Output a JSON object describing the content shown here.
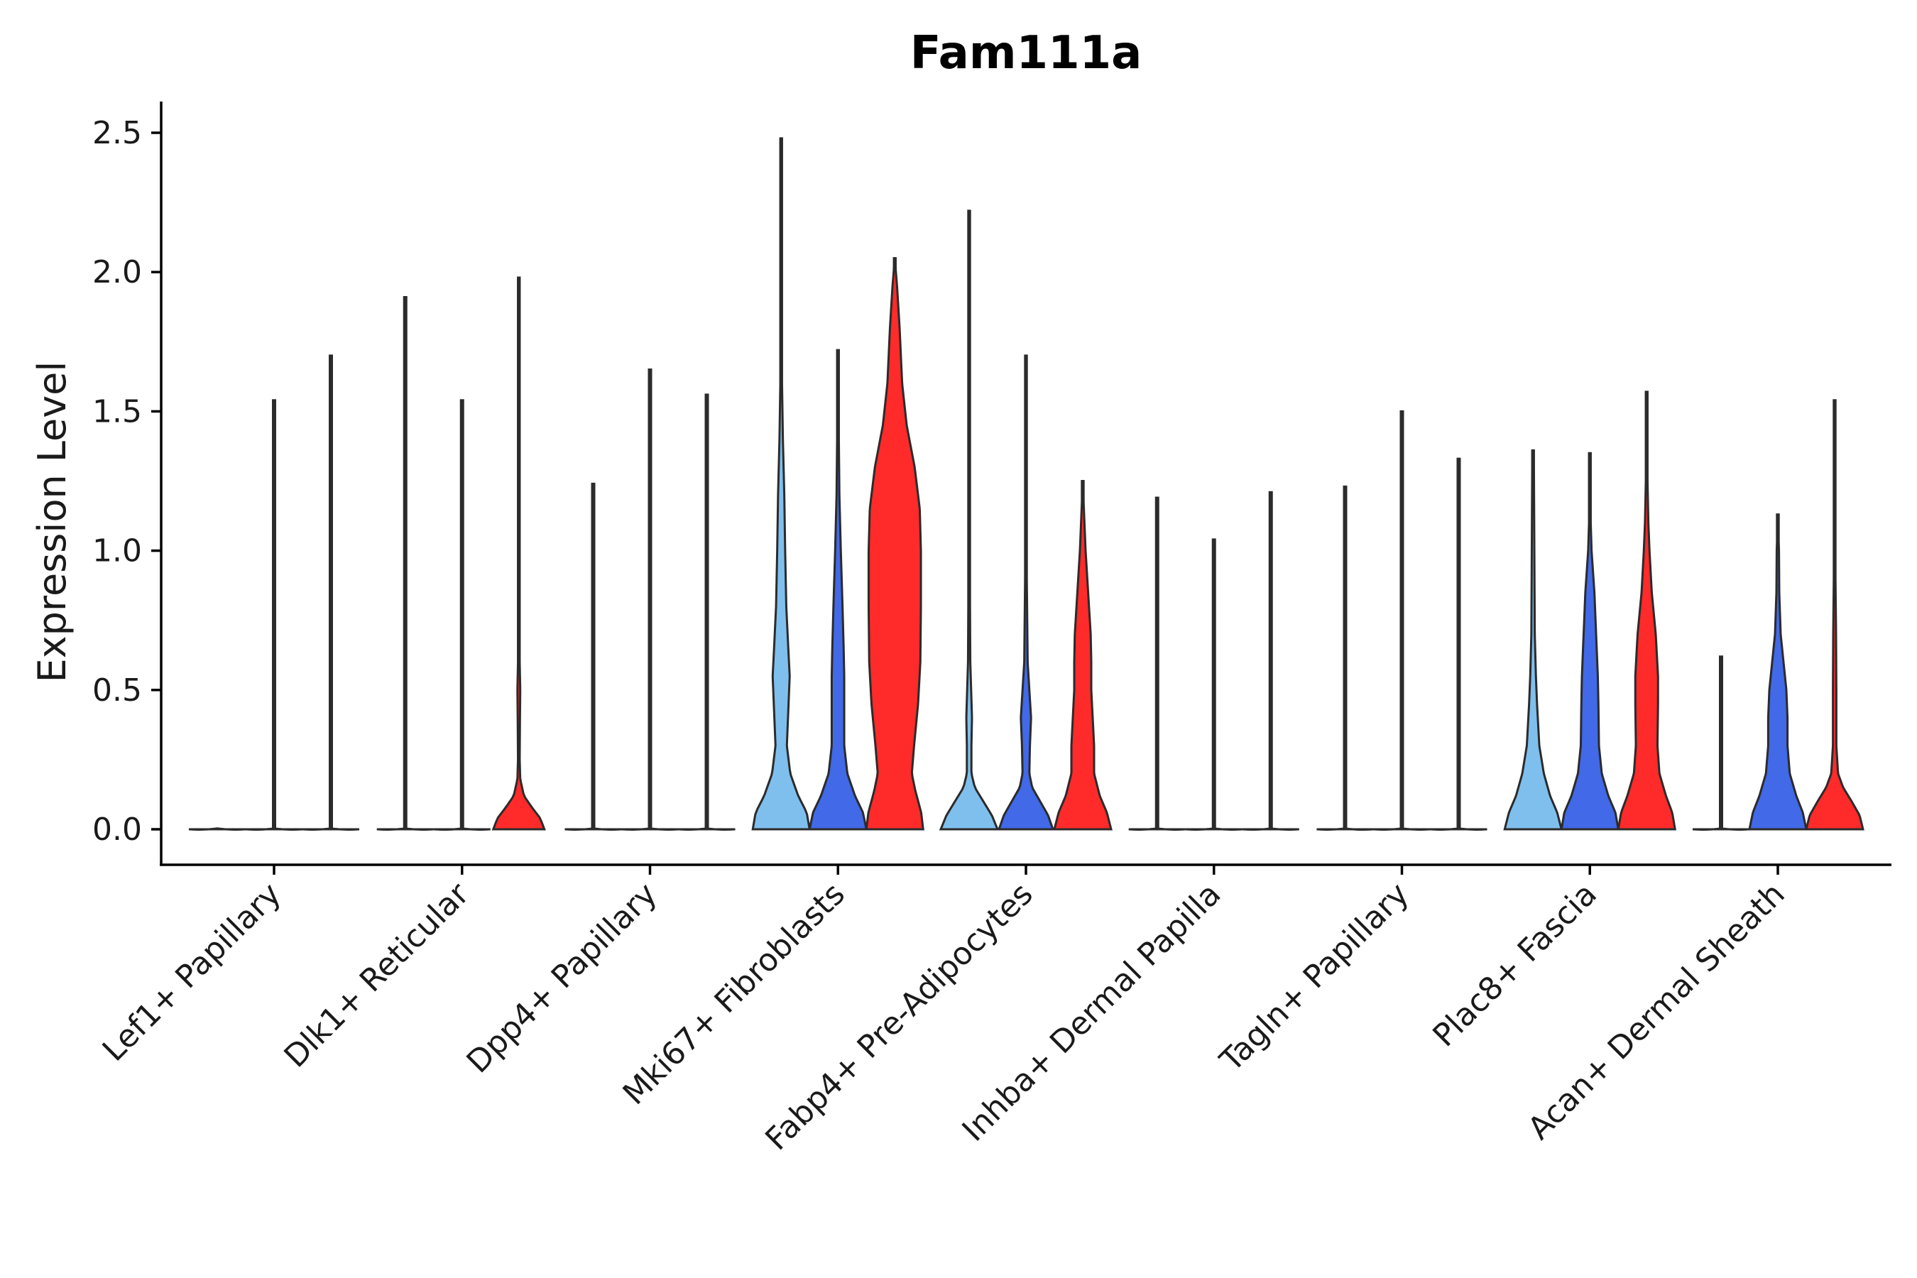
{
  "chart_data": {
    "type": "violin",
    "title": "Fam111a",
    "xlabel": "",
    "ylabel": "Expression Level",
    "ylim": [
      -0.12,
      2.6
    ],
    "yticks": [
      0.0,
      0.5,
      1.0,
      1.5,
      2.0,
      2.5
    ],
    "ytick_labels": [
      "0.0",
      "0.5",
      "1.0",
      "1.5",
      "2.0",
      "2.5"
    ],
    "colors": {
      "light_blue": "#7fbfed",
      "blue": "#4169e8",
      "red": "#ff2a2a"
    },
    "groups": [
      {
        "label": "Lef1+ Papillary",
        "violins": [
          {
            "color": "#7fbfed",
            "max": 0.0,
            "profile": [
              [
                0,
                0.0
              ]
            ]
          },
          {
            "color": "#4169e8",
            "max": 1.54,
            "profile": [
              [
                0,
                0.0
              ]
            ]
          },
          {
            "color": "#ff2a2a",
            "max": 1.7,
            "profile": [
              [
                0,
                0.0
              ]
            ]
          }
        ]
      },
      {
        "label": "Dlk1+ Reticular",
        "violins": [
          {
            "color": "#7fbfed",
            "max": 1.91,
            "profile": [
              [
                0,
                0.0
              ]
            ]
          },
          {
            "color": "#4169e8",
            "max": 1.54,
            "profile": [
              [
                0,
                0.0
              ]
            ]
          },
          {
            "color": "#ff2a2a",
            "max": 1.98,
            "profile": [
              [
                0,
                0.9
              ],
              [
                0.04,
                0.75
              ],
              [
                0.08,
                0.45
              ],
              [
                0.12,
                0.18
              ],
              [
                0.18,
                0.05
              ],
              [
                0.25,
                0.03
              ],
              [
                0.4,
                0.04
              ],
              [
                0.5,
                0.05
              ],
              [
                0.6,
                0.03
              ],
              [
                0.8,
                0.01
              ],
              [
                1.98,
                0.0
              ]
            ]
          }
        ]
      },
      {
        "label": "Dpp4+ Papillary",
        "violins": [
          {
            "color": "#7fbfed",
            "max": 1.24,
            "profile": [
              [
                0,
                0.0
              ]
            ]
          },
          {
            "color": "#4169e8",
            "max": 1.65,
            "profile": [
              [
                0,
                0.0
              ]
            ]
          },
          {
            "color": "#ff2a2a",
            "max": 1.56,
            "profile": [
              [
                0,
                0.0
              ]
            ]
          }
        ]
      },
      {
        "label": "Mki67+ Fibroblasts",
        "violins": [
          {
            "color": "#7fbfed",
            "max": 2.48,
            "profile": [
              [
                0,
                1.0
              ],
              [
                0.06,
                0.9
              ],
              [
                0.12,
                0.6
              ],
              [
                0.2,
                0.32
              ],
              [
                0.3,
                0.2
              ],
              [
                0.45,
                0.26
              ],
              [
                0.55,
                0.3
              ],
              [
                0.65,
                0.25
              ],
              [
                0.8,
                0.18
              ],
              [
                1.0,
                0.14
              ],
              [
                1.2,
                0.11
              ],
              [
                1.4,
                0.06
              ],
              [
                1.6,
                0.03
              ],
              [
                2.0,
                0.01
              ],
              [
                2.48,
                0.0
              ]
            ]
          },
          {
            "color": "#4169e8",
            "max": 1.72,
            "profile": [
              [
                0,
                1.0
              ],
              [
                0.06,
                0.88
              ],
              [
                0.12,
                0.6
              ],
              [
                0.2,
                0.33
              ],
              [
                0.3,
                0.22
              ],
              [
                0.45,
                0.22
              ],
              [
                0.55,
                0.22
              ],
              [
                0.65,
                0.2
              ],
              [
                0.8,
                0.16
              ],
              [
                1.0,
                0.1
              ],
              [
                1.2,
                0.05
              ],
              [
                1.4,
                0.03
              ],
              [
                1.72,
                0.0
              ]
            ]
          },
          {
            "color": "#ff2a2a",
            "max": 2.05,
            "profile": [
              [
                0,
                1.0
              ],
              [
                0.06,
                0.93
              ],
              [
                0.14,
                0.72
              ],
              [
                0.2,
                0.6
              ],
              [
                0.3,
                0.68
              ],
              [
                0.45,
                0.82
              ],
              [
                0.6,
                0.9
              ],
              [
                0.8,
                0.92
              ],
              [
                1.0,
                0.92
              ],
              [
                1.15,
                0.88
              ],
              [
                1.3,
                0.7
              ],
              [
                1.45,
                0.42
              ],
              [
                1.6,
                0.26
              ],
              [
                1.8,
                0.17
              ],
              [
                1.95,
                0.08
              ],
              [
                2.05,
                0.0
              ]
            ]
          }
        ]
      },
      {
        "label": "Fabp4+ Pre-Adipocytes",
        "violins": [
          {
            "color": "#7fbfed",
            "max": 2.22,
            "profile": [
              [
                0,
                1.0
              ],
              [
                0.05,
                0.8
              ],
              [
                0.1,
                0.5
              ],
              [
                0.15,
                0.2
              ],
              [
                0.2,
                0.08
              ],
              [
                0.3,
                0.08
              ],
              [
                0.4,
                0.1
              ],
              [
                0.5,
                0.07
              ],
              [
                0.6,
                0.04
              ],
              [
                0.8,
                0.03
              ],
              [
                1.0,
                0.02
              ],
              [
                1.5,
                0.01
              ],
              [
                2.22,
                0.0
              ]
            ]
          },
          {
            "color": "#4169e8",
            "max": 1.7,
            "profile": [
              [
                0,
                0.95
              ],
              [
                0.05,
                0.78
              ],
              [
                0.1,
                0.5
              ],
              [
                0.15,
                0.22
              ],
              [
                0.2,
                0.12
              ],
              [
                0.3,
                0.14
              ],
              [
                0.4,
                0.18
              ],
              [
                0.5,
                0.12
              ],
              [
                0.6,
                0.06
              ],
              [
                0.8,
                0.04
              ],
              [
                1.0,
                0.02
              ],
              [
                1.7,
                0.0
              ]
            ]
          },
          {
            "color": "#ff2a2a",
            "max": 1.25,
            "profile": [
              [
                0,
                1.0
              ],
              [
                0.06,
                0.85
              ],
              [
                0.12,
                0.6
              ],
              [
                0.2,
                0.4
              ],
              [
                0.3,
                0.4
              ],
              [
                0.4,
                0.35
              ],
              [
                0.5,
                0.3
              ],
              [
                0.6,
                0.3
              ],
              [
                0.7,
                0.28
              ],
              [
                0.8,
                0.22
              ],
              [
                0.9,
                0.16
              ],
              [
                1.0,
                0.1
              ],
              [
                1.1,
                0.06
              ],
              [
                1.25,
                0.0
              ]
            ]
          }
        ]
      },
      {
        "label": "Inhba+ Dermal Papilla",
        "violins": [
          {
            "color": "#7fbfed",
            "max": 1.19,
            "profile": [
              [
                0,
                0.0
              ]
            ]
          },
          {
            "color": "#4169e8",
            "max": 1.04,
            "profile": [
              [
                0,
                0.0
              ]
            ]
          },
          {
            "color": "#ff2a2a",
            "max": 1.21,
            "profile": [
              [
                0,
                0.0
              ]
            ]
          }
        ]
      },
      {
        "label": "Tagln+ Papillary",
        "violins": [
          {
            "color": "#7fbfed",
            "max": 1.23,
            "profile": [
              [
                0,
                0.0
              ]
            ]
          },
          {
            "color": "#4169e8",
            "max": 1.5,
            "profile": [
              [
                0,
                0.0
              ]
            ]
          },
          {
            "color": "#ff2a2a",
            "max": 1.33,
            "profile": [
              [
                0,
                0.0
              ]
            ]
          }
        ]
      },
      {
        "label": "Plac8+ Fascia",
        "violins": [
          {
            "color": "#7fbfed",
            "max": 1.36,
            "profile": [
              [
                0,
                1.0
              ],
              [
                0.06,
                0.85
              ],
              [
                0.12,
                0.6
              ],
              [
                0.2,
                0.38
              ],
              [
                0.3,
                0.22
              ],
              [
                0.45,
                0.14
              ],
              [
                0.55,
                0.1
              ],
              [
                0.7,
                0.06
              ],
              [
                0.9,
                0.05
              ],
              [
                1.1,
                0.04
              ],
              [
                1.3,
                0.03
              ],
              [
                1.36,
                0.0
              ]
            ]
          },
          {
            "color": "#4169e8",
            "max": 1.35,
            "profile": [
              [
                0,
                1.0
              ],
              [
                0.06,
                0.9
              ],
              [
                0.12,
                0.65
              ],
              [
                0.2,
                0.42
              ],
              [
                0.3,
                0.32
              ],
              [
                0.45,
                0.3
              ],
              [
                0.55,
                0.28
              ],
              [
                0.7,
                0.22
              ],
              [
                0.85,
                0.16
              ],
              [
                1.0,
                0.06
              ],
              [
                1.1,
                0.03
              ],
              [
                1.35,
                0.0
              ]
            ]
          },
          {
            "color": "#ff2a2a",
            "max": 1.57,
            "profile": [
              [
                0,
                1.0
              ],
              [
                0.06,
                0.9
              ],
              [
                0.12,
                0.68
              ],
              [
                0.2,
                0.45
              ],
              [
                0.3,
                0.38
              ],
              [
                0.45,
                0.4
              ],
              [
                0.55,
                0.4
              ],
              [
                0.7,
                0.32
              ],
              [
                0.85,
                0.18
              ],
              [
                1.0,
                0.1
              ],
              [
                1.1,
                0.06
              ],
              [
                1.3,
                0.02
              ],
              [
                1.57,
                0.0
              ]
            ]
          }
        ]
      },
      {
        "label": "Acan+ Dermal Sheath",
        "violins": [
          {
            "color": "#7fbfed",
            "max": 0.62,
            "profile": [
              [
                0,
                0.0
              ]
            ]
          },
          {
            "color": "#4169e8",
            "max": 1.13,
            "profile": [
              [
                0,
                1.0
              ],
              [
                0.06,
                0.88
              ],
              [
                0.12,
                0.65
              ],
              [
                0.2,
                0.42
              ],
              [
                0.3,
                0.34
              ],
              [
                0.4,
                0.34
              ],
              [
                0.5,
                0.3
              ],
              [
                0.6,
                0.2
              ],
              [
                0.7,
                0.1
              ],
              [
                0.85,
                0.05
              ],
              [
                1.0,
                0.04
              ],
              [
                1.13,
                0.0
              ]
            ]
          },
          {
            "color": "#ff2a2a",
            "max": 1.54,
            "profile": [
              [
                0,
                1.0
              ],
              [
                0.05,
                0.88
              ],
              [
                0.1,
                0.6
              ],
              [
                0.15,
                0.3
              ],
              [
                0.2,
                0.12
              ],
              [
                0.3,
                0.06
              ],
              [
                0.5,
                0.06
              ],
              [
                0.7,
                0.05
              ],
              [
                0.9,
                0.03
              ],
              [
                1.2,
                0.01
              ],
              [
                1.54,
                0.0
              ]
            ]
          }
        ]
      }
    ]
  }
}
